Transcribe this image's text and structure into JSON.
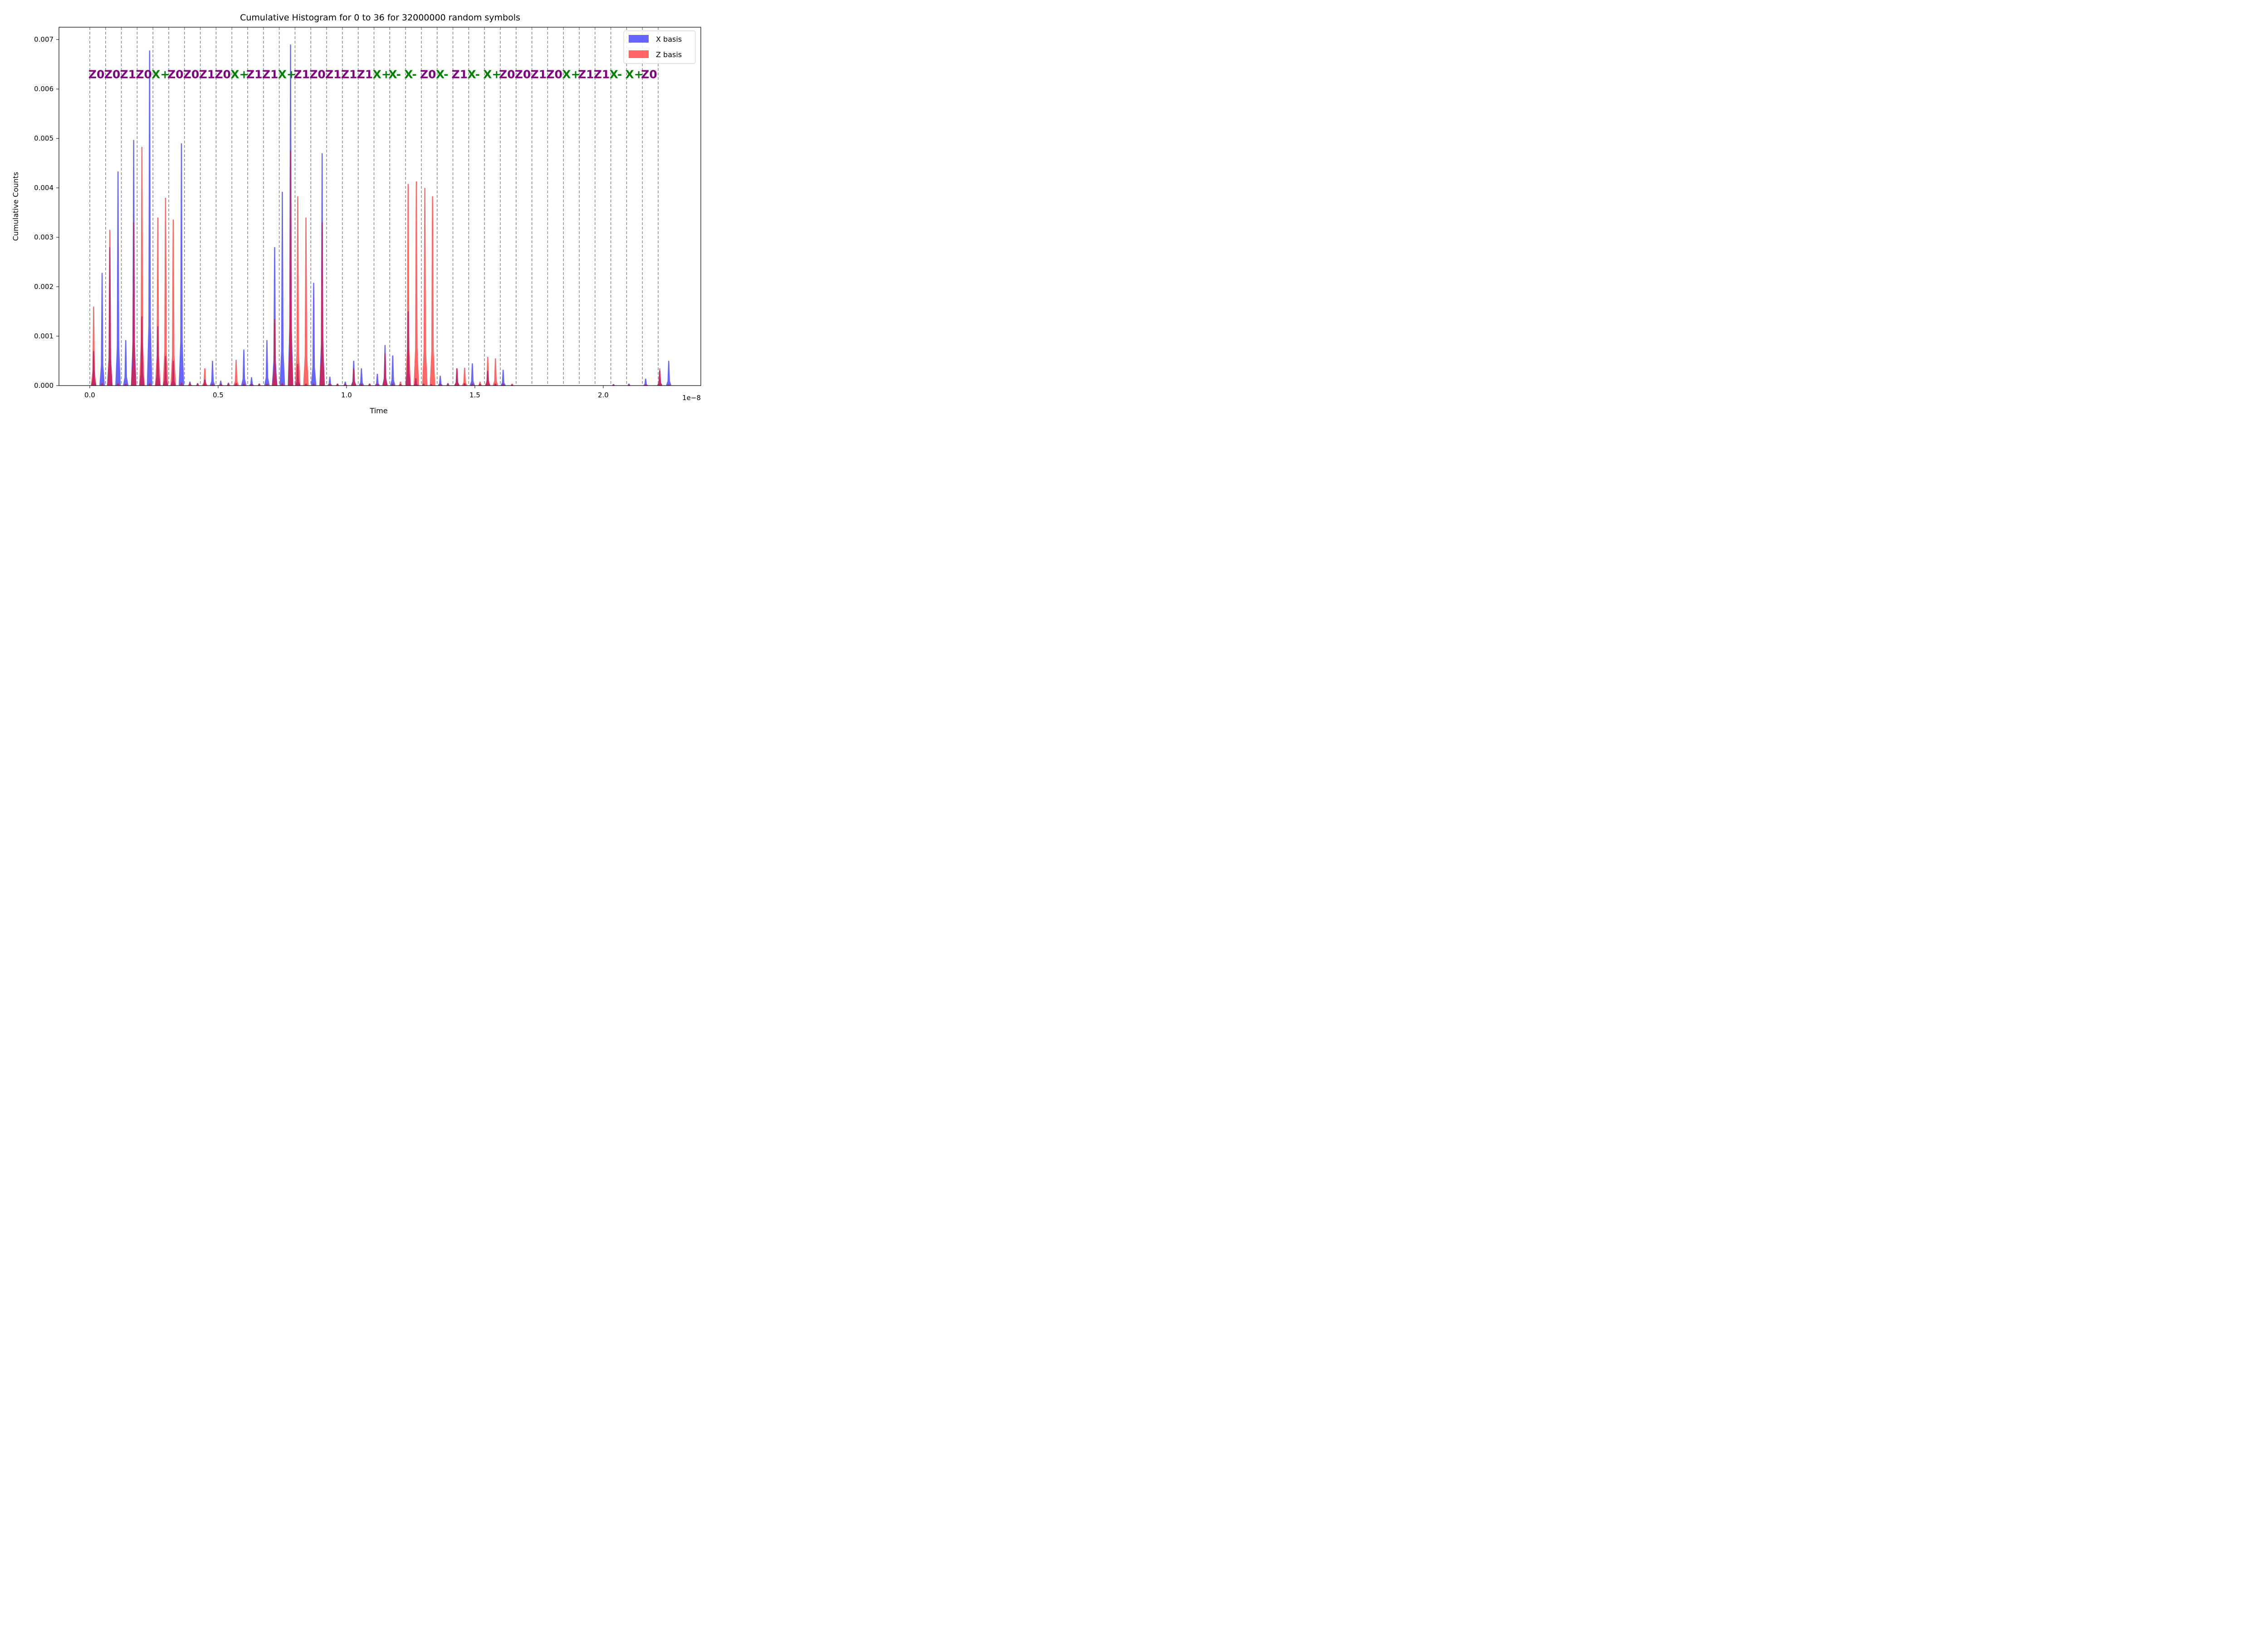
{
  "chart_data": {
    "type": "area",
    "title": "Cumulative Histogram for 0 to 36 for 32000000 random symbols",
    "xlabel": "Time",
    "ylabel": "Cumulative Counts",
    "x_offset_label": "1e−8",
    "xlim": [
      -0.12,
      2.38
    ],
    "ylim": [
      0,
      0.00725
    ],
    "x_ticks": [
      0.0,
      0.5,
      1.0,
      1.5,
      2.0
    ],
    "x_tick_labels": [
      "0.0",
      "0.5",
      "1.0",
      "1.5",
      "2.0"
    ],
    "y_ticks": [
      0.0,
      0.001,
      0.002,
      0.003,
      0.004,
      0.005,
      0.006,
      0.007
    ],
    "y_tick_labels": [
      "0.000",
      "0.001",
      "0.002",
      "0.003",
      "0.004",
      "0.005",
      "0.006",
      "0.007"
    ],
    "grid": false,
    "legend": {
      "position": "top-right",
      "entries": [
        "X basis",
        "Z basis"
      ]
    },
    "colors": {
      "x_basis": "#0000ff",
      "z_basis": "#ff0000",
      "divider": "#808080",
      "z_symbol": "#800080",
      "x_symbol": "#008000"
    },
    "symbol_dividers": [
      0.0,
      0.0615,
      0.123,
      0.1845,
      0.246,
      0.3075,
      0.369,
      0.4305,
      0.492,
      0.5535,
      0.615,
      0.6765,
      0.738,
      0.7995,
      0.861,
      0.9225,
      0.984,
      1.0455,
      1.107,
      1.1685,
      1.23,
      1.2915,
      1.353,
      1.4145,
      1.476,
      1.5375,
      1.599,
      1.6605,
      1.722,
      1.7835,
      1.845,
      1.9065,
      1.968,
      2.0295,
      2.091,
      2.1525,
      2.214
    ],
    "symbol_label_y": 0.0063,
    "symbols": [
      {
        "label": "Z0",
        "basis": "Z"
      },
      {
        "label": "Z0",
        "basis": "Z"
      },
      {
        "label": "Z1",
        "basis": "Z"
      },
      {
        "label": "Z0",
        "basis": "Z"
      },
      {
        "label": "X+",
        "basis": "X"
      },
      {
        "label": "Z0",
        "basis": "Z"
      },
      {
        "label": "Z0",
        "basis": "Z"
      },
      {
        "label": "Z1",
        "basis": "Z"
      },
      {
        "label": "Z0",
        "basis": "Z"
      },
      {
        "label": "X+",
        "basis": "X"
      },
      {
        "label": "Z1",
        "basis": "Z"
      },
      {
        "label": "Z1",
        "basis": "Z"
      },
      {
        "label": "X+",
        "basis": "X"
      },
      {
        "label": "Z1",
        "basis": "Z"
      },
      {
        "label": "Z0",
        "basis": "Z"
      },
      {
        "label": "Z1",
        "basis": "Z"
      },
      {
        "label": "Z1",
        "basis": "Z"
      },
      {
        "label": "Z1",
        "basis": "Z"
      },
      {
        "label": "X+",
        "basis": "X"
      },
      {
        "label": "X-",
        "basis": "X"
      },
      {
        "label": "X-",
        "basis": "X"
      },
      {
        "label": "Z0",
        "basis": "Z"
      },
      {
        "label": "X-",
        "basis": "X"
      },
      {
        "label": "Z1",
        "basis": "Z"
      },
      {
        "label": "X-",
        "basis": "X"
      },
      {
        "label": "X+",
        "basis": "X"
      },
      {
        "label": "Z0",
        "basis": "Z"
      },
      {
        "label": "Z0",
        "basis": "Z"
      },
      {
        "label": "Z1",
        "basis": "Z"
      },
      {
        "label": "Z0",
        "basis": "Z"
      },
      {
        "label": "X+",
        "basis": "X"
      },
      {
        "label": "Z1",
        "basis": "Z"
      },
      {
        "label": "Z1",
        "basis": "Z"
      },
      {
        "label": "X-",
        "basis": "X"
      },
      {
        "label": "X+",
        "basis": "X"
      },
      {
        "label": "Z0",
        "basis": "Z"
      }
    ],
    "series": [
      {
        "name": "X basis",
        "peaks": [
          {
            "x": 0.015,
            "y": 0.0007
          },
          {
            "x": 0.048,
            "y": 0.00228
          },
          {
            "x": 0.078,
            "y": 0.0028
          },
          {
            "x": 0.11,
            "y": 0.00433
          },
          {
            "x": 0.14,
            "y": 0.00092
          },
          {
            "x": 0.171,
            "y": 0.00497
          },
          {
            "x": 0.203,
            "y": 0.0014
          },
          {
            "x": 0.233,
            "y": 0.00678
          },
          {
            "x": 0.265,
            "y": 0.0012
          },
          {
            "x": 0.295,
            "y": 0.0006
          },
          {
            "x": 0.325,
            "y": 0.0005
          },
          {
            "x": 0.357,
            "y": 0.0049
          },
          {
            "x": 0.39,
            "y": 8e-05
          },
          {
            "x": 0.42,
            "y": 5e-05
          },
          {
            "x": 0.448,
            "y": 0.00012
          },
          {
            "x": 0.478,
            "y": 0.0005
          },
          {
            "x": 0.51,
            "y": 0.0001
          },
          {
            "x": 0.54,
            "y": 6e-05
          },
          {
            "x": 0.57,
            "y": 5e-05
          },
          {
            "x": 0.6,
            "y": 0.00073
          },
          {
            "x": 0.63,
            "y": 0.00017
          },
          {
            "x": 0.66,
            "y": 4e-05
          },
          {
            "x": 0.69,
            "y": 0.00092
          },
          {
            "x": 0.72,
            "y": 0.0028
          },
          {
            "x": 0.75,
            "y": 0.00392
          },
          {
            "x": 0.782,
            "y": 0.0069
          },
          {
            "x": 0.81,
            "y": 0.00044
          },
          {
            "x": 0.842,
            "y": 4e-05
          },
          {
            "x": 0.872,
            "y": 0.00208
          },
          {
            "x": 0.905,
            "y": 0.0047
          },
          {
            "x": 0.935,
            "y": 0.00018
          },
          {
            "x": 0.965,
            "y": 4e-05
          },
          {
            "x": 0.995,
            "y": 8e-05
          },
          {
            "x": 1.028,
            "y": 0.0005
          },
          {
            "x": 1.058,
            "y": 0.00035
          },
          {
            "x": 1.09,
            "y": 4e-05
          },
          {
            "x": 1.12,
            "y": 0.00024
          },
          {
            "x": 1.15,
            "y": 0.00082
          },
          {
            "x": 1.18,
            "y": 0.00061
          },
          {
            "x": 1.21,
            "y": 3e-05
          },
          {
            "x": 1.24,
            "y": 0.0015
          },
          {
            "x": 1.27,
            "y": 0.00015
          },
          {
            "x": 1.3,
            "y": 4e-05
          },
          {
            "x": 1.33,
            "y": 3e-05
          },
          {
            "x": 1.365,
            "y": 0.0002
          },
          {
            "x": 1.395,
            "y": 5e-05
          },
          {
            "x": 1.43,
            "y": 0.00035
          },
          {
            "x": 1.46,
            "y": 5e-05
          },
          {
            "x": 1.49,
            "y": 0.00045
          },
          {
            "x": 1.52,
            "y": 4e-05
          },
          {
            "x": 1.55,
            "y": 0.0003
          },
          {
            "x": 1.58,
            "y": 4e-05
          },
          {
            "x": 1.61,
            "y": 0.00032
          },
          {
            "x": 1.645,
            "y": 2e-05
          },
          {
            "x": 2.04,
            "y": 3e-05
          },
          {
            "x": 2.1,
            "y": 4e-05
          },
          {
            "x": 2.165,
            "y": 0.00014
          },
          {
            "x": 2.22,
            "y": 0.0003
          },
          {
            "x": 2.255,
            "y": 0.0005
          }
        ]
      },
      {
        "name": "Z basis",
        "peaks": [
          {
            "x": 0.015,
            "y": 0.0016
          },
          {
            "x": 0.048,
            "y": 5e-05
          },
          {
            "x": 0.078,
            "y": 0.00315
          },
          {
            "x": 0.11,
            "y": 5e-05
          },
          {
            "x": 0.14,
            "y": 4e-05
          },
          {
            "x": 0.171,
            "y": 0.0033
          },
          {
            "x": 0.203,
            "y": 0.00483
          },
          {
            "x": 0.233,
            "y": 5e-05
          },
          {
            "x": 0.265,
            "y": 0.0034
          },
          {
            "x": 0.295,
            "y": 0.0038
          },
          {
            "x": 0.325,
            "y": 0.00336
          },
          {
            "x": 0.357,
            "y": 6e-05
          },
          {
            "x": 0.39,
            "y": 5e-05
          },
          {
            "x": 0.42,
            "y": 4e-05
          },
          {
            "x": 0.448,
            "y": 0.00035
          },
          {
            "x": 0.478,
            "y": 4e-05
          },
          {
            "x": 0.51,
            "y": 4e-05
          },
          {
            "x": 0.54,
            "y": 4e-05
          },
          {
            "x": 0.57,
            "y": 0.00052
          },
          {
            "x": 0.6,
            "y": 4e-05
          },
          {
            "x": 0.63,
            "y": 4e-05
          },
          {
            "x": 0.66,
            "y": 4e-05
          },
          {
            "x": 0.69,
            "y": 4e-05
          },
          {
            "x": 0.72,
            "y": 0.00135
          },
          {
            "x": 0.75,
            "y": 5e-05
          },
          {
            "x": 0.782,
            "y": 0.00475
          },
          {
            "x": 0.81,
            "y": 0.00383
          },
          {
            "x": 0.842,
            "y": 0.0034
          },
          {
            "x": 0.872,
            "y": 4e-05
          },
          {
            "x": 0.905,
            "y": 0.0033
          },
          {
            "x": 0.935,
            "y": 4e-05
          },
          {
            "x": 0.965,
            "y": 4e-05
          },
          {
            "x": 0.995,
            "y": 4e-05
          },
          {
            "x": 1.028,
            "y": 0.00035
          },
          {
            "x": 1.058,
            "y": 4e-05
          },
          {
            "x": 1.09,
            "y": 4e-05
          },
          {
            "x": 1.12,
            "y": 4e-05
          },
          {
            "x": 1.15,
            "y": 0.00065
          },
          {
            "x": 1.18,
            "y": 4e-05
          },
          {
            "x": 1.21,
            "y": 8e-05
          },
          {
            "x": 1.24,
            "y": 0.00408
          },
          {
            "x": 1.272,
            "y": 0.00413
          },
          {
            "x": 1.305,
            "y": 0.004
          },
          {
            "x": 1.335,
            "y": 0.00383
          },
          {
            "x": 1.365,
            "y": 4e-05
          },
          {
            "x": 1.395,
            "y": 4e-05
          },
          {
            "x": 1.43,
            "y": 0.00035
          },
          {
            "x": 1.46,
            "y": 0.00036
          },
          {
            "x": 1.49,
            "y": 4e-05
          },
          {
            "x": 1.52,
            "y": 8e-05
          },
          {
            "x": 1.55,
            "y": 0.00058
          },
          {
            "x": 1.58,
            "y": 0.00055
          },
          {
            "x": 1.61,
            "y": 4e-05
          },
          {
            "x": 1.645,
            "y": 4e-05
          },
          {
            "x": 2.04,
            "y": 2e-05
          },
          {
            "x": 2.1,
            "y": 2e-05
          },
          {
            "x": 2.165,
            "y": 2e-05
          },
          {
            "x": 2.22,
            "y": 0.00035
          },
          {
            "x": 2.255,
            "y": 2e-05
          }
        ]
      }
    ]
  }
}
